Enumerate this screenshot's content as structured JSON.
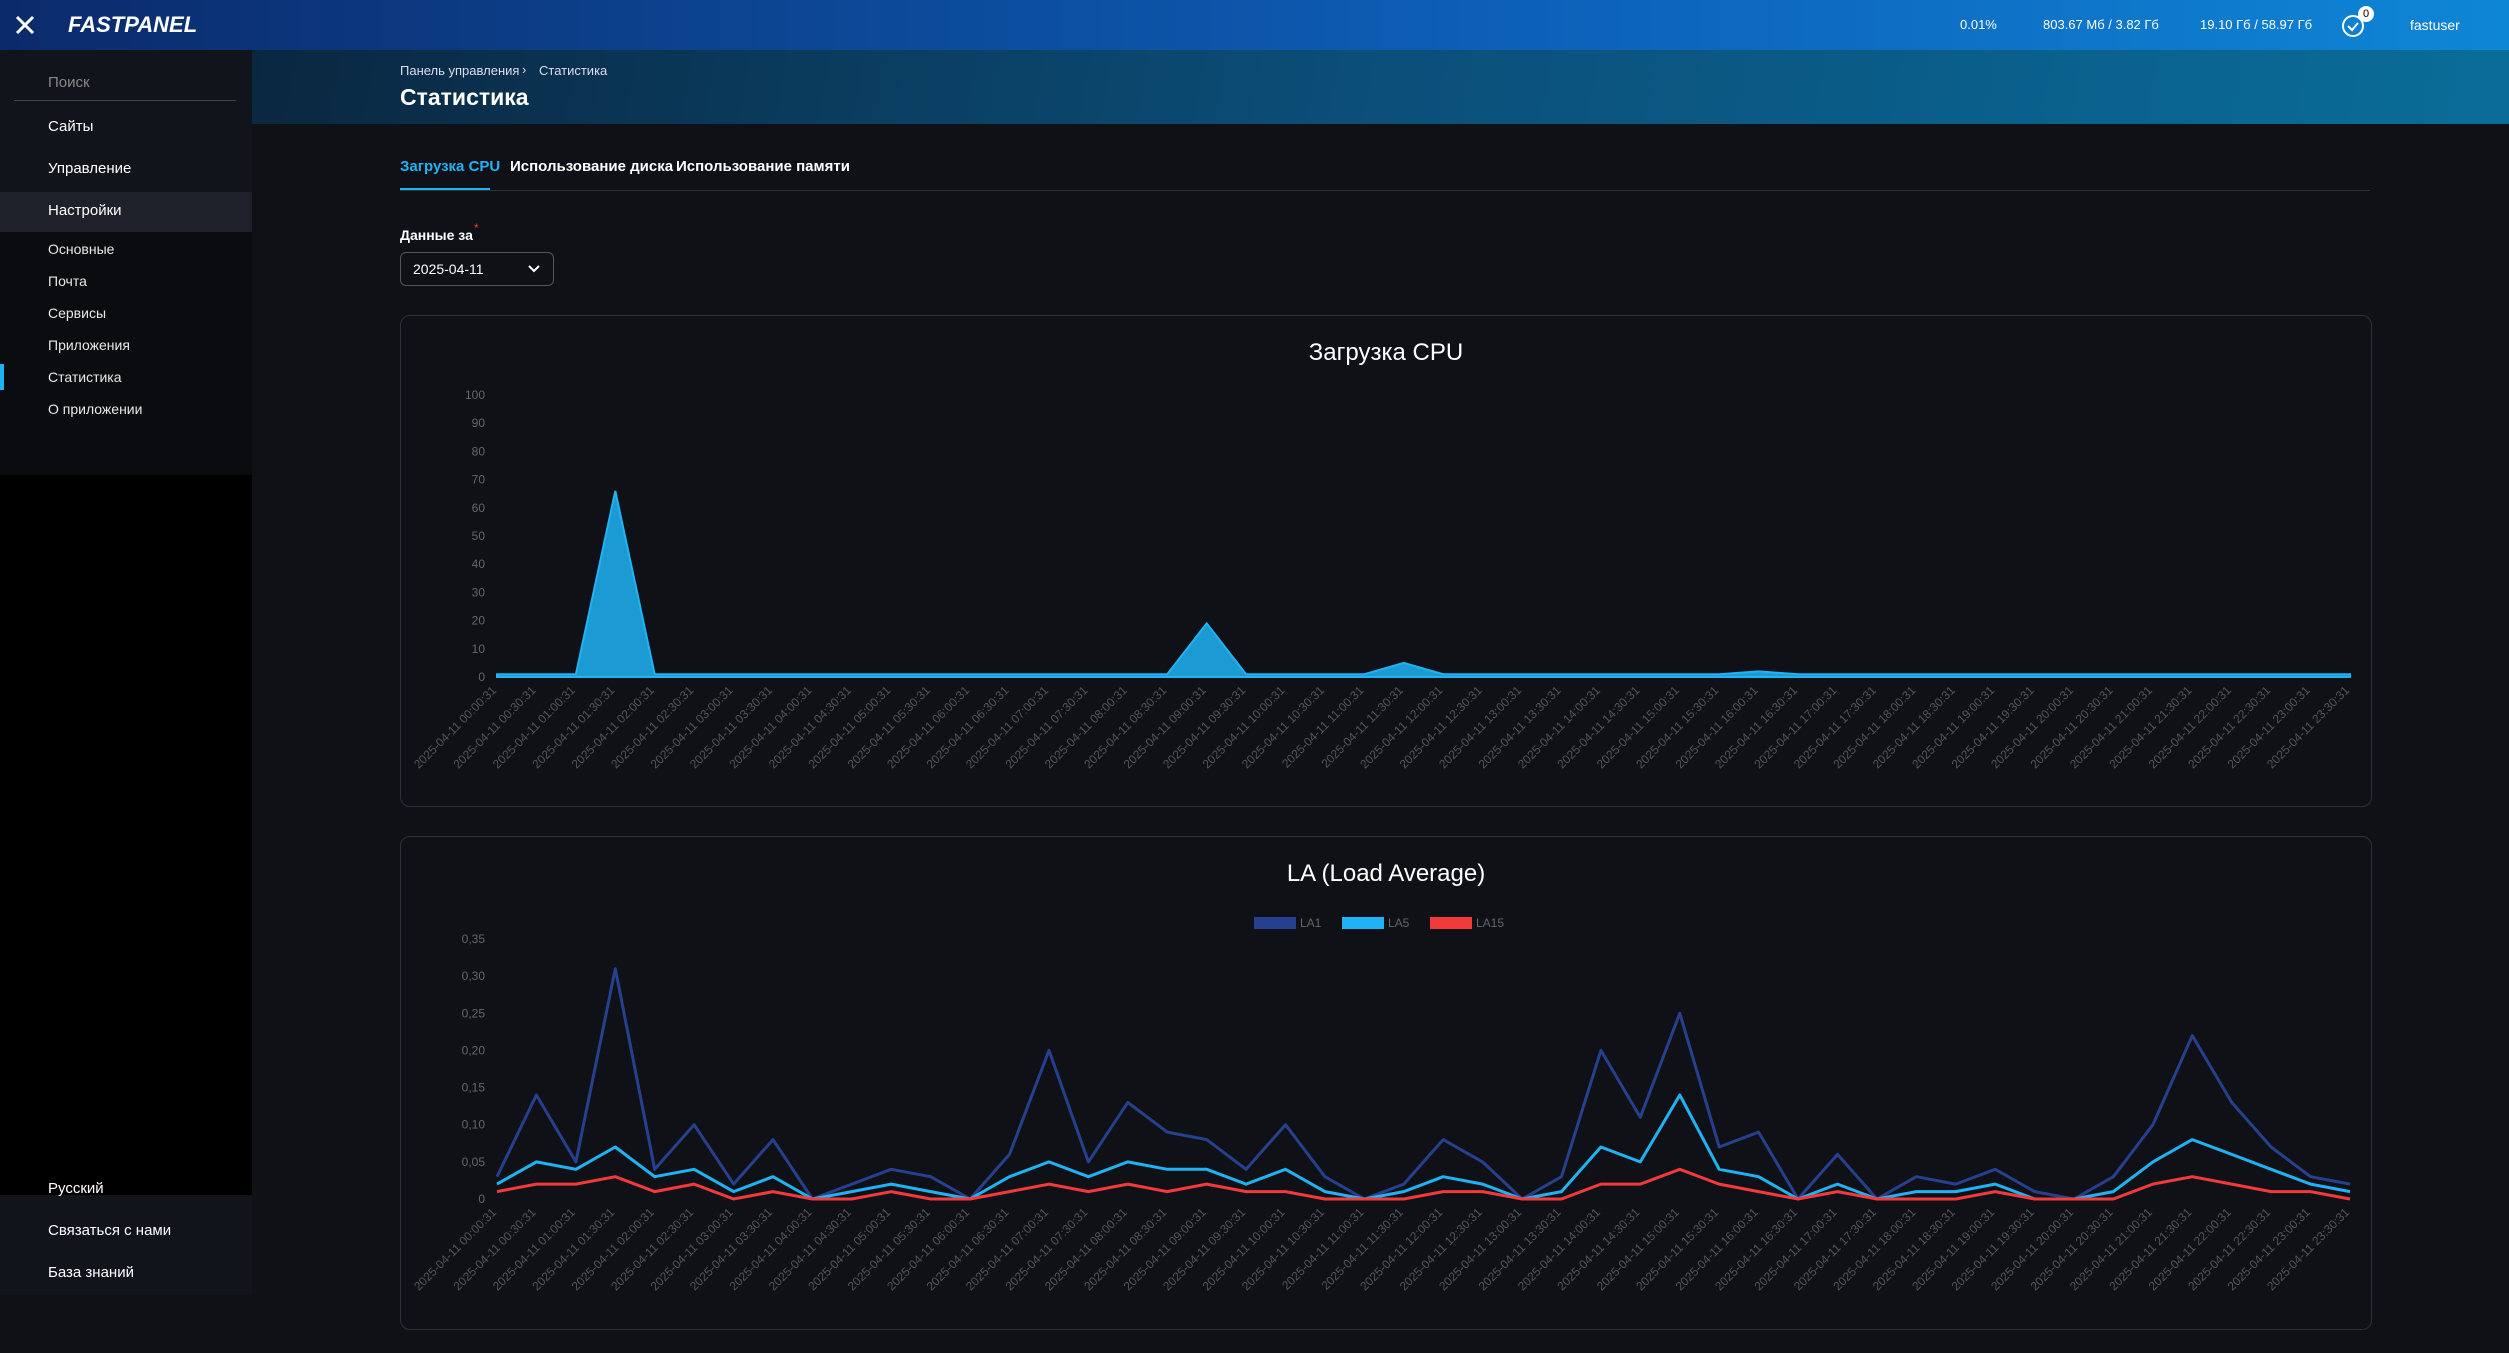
{
  "header": {
    "logo": "FASTPANEL",
    "stats": [
      "0.01%",
      "803.67 Мб / 3.82 Гб",
      "19.10 Гб / 58.97 Гб"
    ],
    "badge": "0",
    "user": "fastuser"
  },
  "sidebar": {
    "search": "Поиск",
    "items": [
      "Сайты",
      "Управление",
      "Настройки"
    ],
    "subitems": [
      "Основные",
      "Почта",
      "Сервисы",
      "Приложения",
      "Статистика",
      "О приложении"
    ],
    "bottom": [
      "Русский",
      "Связаться с нами",
      "База знаний"
    ]
  },
  "breadcrumb": [
    "Панель управления",
    "Статистика"
  ],
  "page_title": "Статистика",
  "tabs": [
    "Загрузка CPU",
    "Использование диска",
    "Использование памяти"
  ],
  "field": {
    "label": "Данные за",
    "value": "2025-04-11"
  },
  "chart_data": [
    {
      "type": "area",
      "title": "Загрузка CPU",
      "color": "#1fb3f5",
      "categories": [
        "2025-04-11 00:00:31",
        "2025-04-11 00:30:31",
        "2025-04-11 01:00:31",
        "2025-04-11 01:30:31",
        "2025-04-11 02:00:31",
        "2025-04-11 02:30:31",
        "2025-04-11 03:00:31",
        "2025-04-11 03:30:31",
        "2025-04-11 04:00:31",
        "2025-04-11 04:30:31",
        "2025-04-11 05:00:31",
        "2025-04-11 05:30:31",
        "2025-04-11 06:00:31",
        "2025-04-11 06:30:31",
        "2025-04-11 07:00:31",
        "2025-04-11 07:30:31",
        "2025-04-11 08:00:31",
        "2025-04-11 08:30:31",
        "2025-04-11 09:00:31",
        "2025-04-11 09:30:31",
        "2025-04-11 10:00:31",
        "2025-04-11 10:30:31",
        "2025-04-11 11:00:31",
        "2025-04-11 11:30:31",
        "2025-04-11 12:00:31",
        "2025-04-11 12:30:31",
        "2025-04-11 13:00:31",
        "2025-04-11 13:30:31",
        "2025-04-11 14:00:31",
        "2025-04-11 14:30:31",
        "2025-04-11 15:00:31",
        "2025-04-11 15:30:31",
        "2025-04-11 16:00:31",
        "2025-04-11 16:30:31",
        "2025-04-11 17:00:31",
        "2025-04-11 17:30:31",
        "2025-04-11 18:00:31",
        "2025-04-11 18:30:31",
        "2025-04-11 19:00:31",
        "2025-04-11 19:30:31",
        "2025-04-11 20:00:31",
        "2025-04-11 20:30:31",
        "2025-04-11 21:00:31",
        "2025-04-11 21:30:31",
        "2025-04-11 22:00:31",
        "2025-04-11 22:30:31",
        "2025-04-11 23:00:31",
        "2025-04-11 23:30:31"
      ],
      "values": [
        1,
        1,
        1,
        66,
        1,
        1,
        1,
        1,
        1,
        1,
        1,
        1,
        1,
        1,
        1,
        1,
        1,
        1,
        19,
        1,
        1,
        1,
        1,
        5,
        1,
        1,
        1,
        1,
        1,
        1,
        1,
        1,
        2,
        1,
        1,
        1,
        1,
        1,
        1,
        1,
        1,
        1,
        1,
        1,
        1,
        1,
        1,
        1
      ],
      "ylim": [
        0,
        100
      ],
      "yticks": [
        0,
        10,
        20,
        30,
        40,
        50,
        60,
        70,
        80,
        90,
        100
      ]
    },
    {
      "type": "line",
      "title": "LA (Load Average)",
      "legend": "top",
      "categories": [
        "2025-04-11 00:00:31",
        "2025-04-11 00:30:31",
        "2025-04-11 01:00:31",
        "2025-04-11 01:30:31",
        "2025-04-11 02:00:31",
        "2025-04-11 02:30:31",
        "2025-04-11 03:00:31",
        "2025-04-11 03:30:31",
        "2025-04-11 04:00:31",
        "2025-04-11 04:30:31",
        "2025-04-11 05:00:31",
        "2025-04-11 05:30:31",
        "2025-04-11 06:00:31",
        "2025-04-11 06:30:31",
        "2025-04-11 07:00:31",
        "2025-04-11 07:30:31",
        "2025-04-11 08:00:31",
        "2025-04-11 08:30:31",
        "2025-04-11 09:00:31",
        "2025-04-11 09:30:31",
        "2025-04-11 10:00:31",
        "2025-04-11 10:30:31",
        "2025-04-11 11:00:31",
        "2025-04-11 11:30:31",
        "2025-04-11 12:00:31",
        "2025-04-11 12:30:31",
        "2025-04-11 13:00:31",
        "2025-04-11 13:30:31",
        "2025-04-11 14:00:31",
        "2025-04-11 14:30:31",
        "2025-04-11 15:00:31",
        "2025-04-11 15:30:31",
        "2025-04-11 16:00:31",
        "2025-04-11 16:30:31",
        "2025-04-11 17:00:31",
        "2025-04-11 17:30:31",
        "2025-04-11 18:00:31",
        "2025-04-11 18:30:31",
        "2025-04-11 19:00:31",
        "2025-04-11 19:30:31",
        "2025-04-11 20:00:31",
        "2025-04-11 20:30:31",
        "2025-04-11 21:00:31",
        "2025-04-11 21:30:31",
        "2025-04-11 22:00:31",
        "2025-04-11 22:30:31",
        "2025-04-11 23:00:31",
        "2025-04-11 23:30:31"
      ],
      "series": [
        {
          "name": "LA1",
          "color": "#26408f",
          "values": [
            0.03,
            0.14,
            0.05,
            0.31,
            0.04,
            0.1,
            0.02,
            0.08,
            0,
            0.02,
            0.04,
            0.03,
            0,
            0.06,
            0.2,
            0.05,
            0.13,
            0.09,
            0.08,
            0.04,
            0.1,
            0.03,
            0,
            0.02,
            0.08,
            0.05,
            0,
            0.03,
            0.2,
            0.11,
            0.25,
            0.07,
            0.09,
            0,
            0.06,
            0,
            0.03,
            0.02,
            0.04,
            0.01,
            0,
            0.03,
            0.1,
            0.22,
            0.13,
            0.07,
            0.03,
            0.02
          ]
        },
        {
          "name": "LA5",
          "color": "#1fb3f5",
          "values": [
            0.02,
            0.05,
            0.04,
            0.07,
            0.03,
            0.04,
            0.01,
            0.03,
            0,
            0.01,
            0.02,
            0.01,
            0,
            0.03,
            0.05,
            0.03,
            0.05,
            0.04,
            0.04,
            0.02,
            0.04,
            0.01,
            0,
            0.01,
            0.03,
            0.02,
            0,
            0.01,
            0.07,
            0.05,
            0.14,
            0.04,
            0.03,
            0,
            0.02,
            0,
            0.01,
            0.01,
            0.02,
            0,
            0,
            0.01,
            0.05,
            0.08,
            0.06,
            0.04,
            0.02,
            0.01
          ]
        },
        {
          "name": "LA15",
          "color": "#f23a3a",
          "values": [
            0.01,
            0.02,
            0.02,
            0.03,
            0.01,
            0.02,
            0,
            0.01,
            0,
            0,
            0.01,
            0,
            0,
            0.01,
            0.02,
            0.01,
            0.02,
            0.01,
            0.02,
            0.01,
            0.01,
            0,
            0,
            0,
            0.01,
            0.01,
            0,
            0,
            0.02,
            0.02,
            0.04,
            0.02,
            0.01,
            0,
            0.01,
            0,
            0,
            0,
            0.01,
            0,
            0,
            0,
            0.02,
            0.03,
            0.02,
            0.01,
            0.01,
            0
          ]
        }
      ],
      "ylim": [
        0,
        0.35
      ],
      "yticks": [
        0,
        {
          "value": 0.05,
          "label": "0,05"
        },
        {
          "value": 0.1,
          "label": "0,10"
        },
        {
          "value": 0.15,
          "label": "0,15"
        },
        {
          "value": 0.2,
          "label": "0,20"
        },
        {
          "value": 0.25,
          "label": "0,25"
        },
        {
          "value": 0.3,
          "label": "0,30"
        },
        {
          "value": 0.35,
          "label": "0,35"
        }
      ]
    }
  ]
}
